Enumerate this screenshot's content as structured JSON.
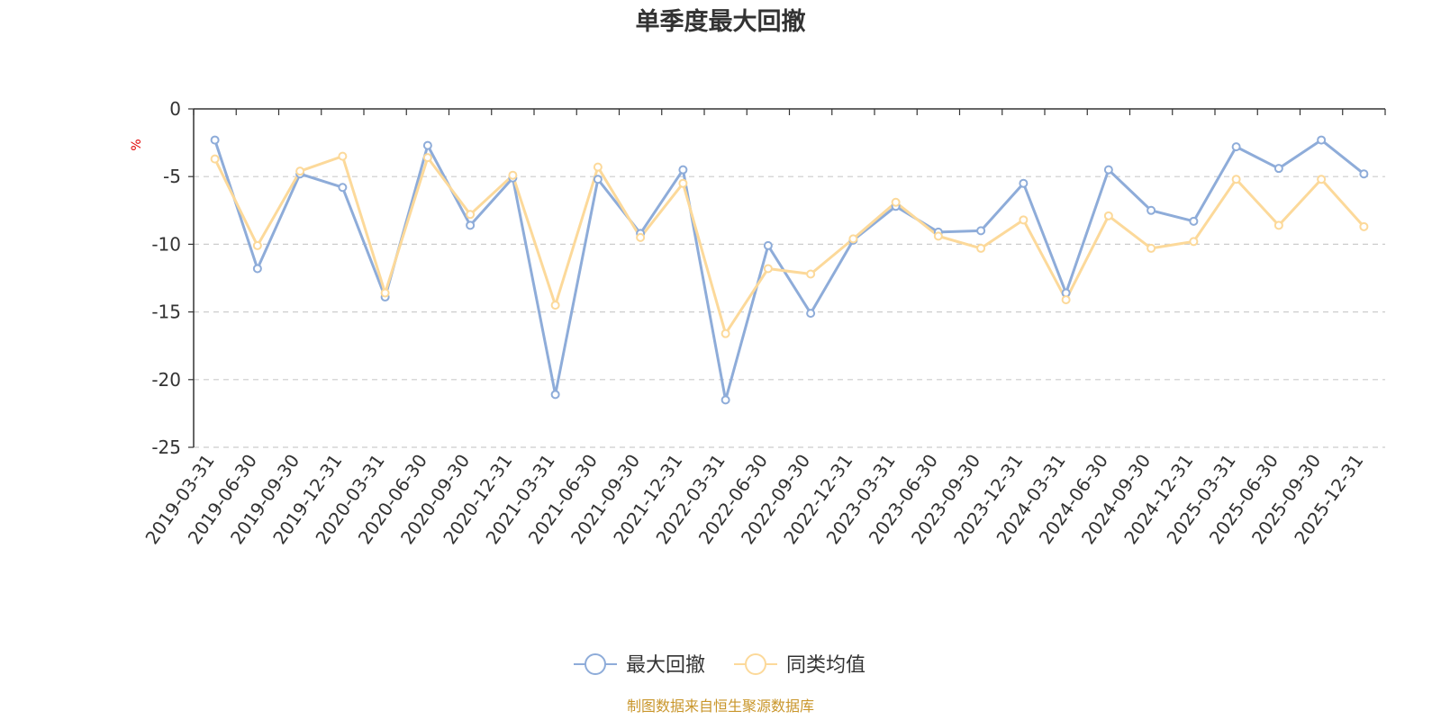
{
  "chart_data": {
    "type": "line",
    "title": "单季度最大回撤",
    "ylabel": "%",
    "ylim": [
      -25,
      0
    ],
    "yticks": [
      0,
      -5,
      -10,
      -15,
      -20,
      -25
    ],
    "grid": true,
    "legend_position": "bottom",
    "categories": [
      "2019-03-31",
      "2019-06-30",
      "2019-09-30",
      "2019-12-31",
      "2020-03-31",
      "2020-06-30",
      "2020-09-30",
      "2020-12-31",
      "2021-03-31",
      "2021-06-30",
      "2021-09-30",
      "2021-12-31",
      "2022-03-31",
      "2022-06-30",
      "2022-09-30",
      "2022-12-31",
      "2023-03-31",
      "2023-06-30",
      "2023-09-30",
      "2023-12-31",
      "2024-03-31",
      "2024-06-30",
      "2024-09-30",
      "2024-12-31",
      "2025-03-31",
      "2025-06-30",
      "2025-09-30",
      "2025-12-31"
    ],
    "series": [
      {
        "name": "最大回撤",
        "color": "#8eacd9",
        "values": [
          -2.3,
          -11.8,
          -4.8,
          -5.8,
          -13.9,
          -2.7,
          -8.6,
          -5.1,
          -21.1,
          -5.2,
          -9.2,
          -4.5,
          -21.5,
          -10.1,
          -15.1,
          -9.7,
          -7.2,
          -9.1,
          -9.0,
          -5.5,
          -13.6,
          -4.5,
          -7.5,
          -8.3,
          -2.8,
          -4.4,
          -2.3,
          -4.8
        ]
      },
      {
        "name": "同类均值",
        "color": "#fcd99a",
        "values": [
          -3.7,
          -10.1,
          -4.6,
          -3.5,
          -13.6,
          -3.6,
          -7.8,
          -4.9,
          -14.5,
          -4.3,
          -9.5,
          -5.5,
          -16.6,
          -11.8,
          -12.2,
          -9.6,
          -6.9,
          -9.4,
          -10.3,
          -8.2,
          -14.1,
          -7.9,
          -10.3,
          -9.8,
          -5.2,
          -8.6,
          -5.2,
          -8.7
        ]
      }
    ]
  },
  "footer": "制图数据来自恒生聚源数据库"
}
